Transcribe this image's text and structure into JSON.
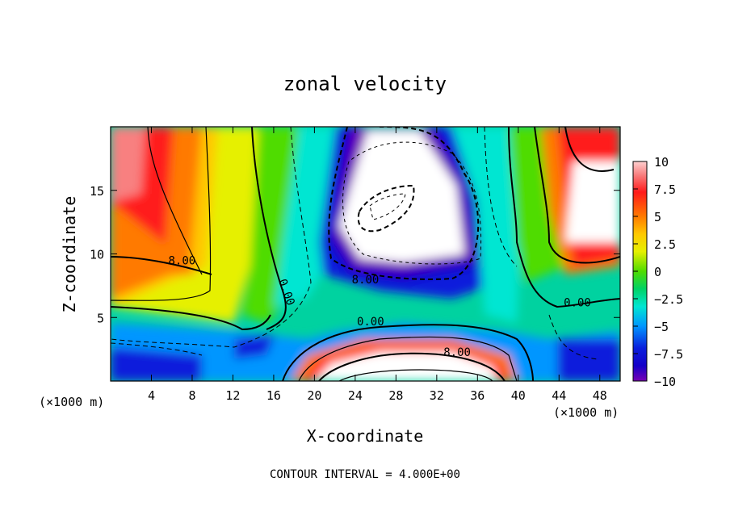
{
  "chart_data": {
    "type": "heatmap",
    "title": "zonal velocity",
    "xlabel": "X-coordinate",
    "ylabel": "Z-coordinate",
    "x_unit": "(×1000 m)",
    "y_unit": "(×1000 m)",
    "xlim": [
      0,
      50
    ],
    "ylim": [
      0,
      20
    ],
    "x_ticks": [
      4,
      8,
      12,
      16,
      20,
      24,
      28,
      32,
      36,
      40,
      44,
      48
    ],
    "y_ticks": [
      5,
      10,
      15
    ],
    "colorbar": {
      "ticks": [
        10,
        7.5,
        5,
        2.5,
        0,
        -2.5,
        -5,
        -7.5,
        -10
      ],
      "tick_labels": [
        "10",
        "7.5",
        "5",
        "2.5",
        "0",
        "−2.5",
        "−5",
        "−7.5",
        "−10"
      ],
      "range": [
        -10,
        10
      ]
    },
    "contour_interval": 4.0,
    "contour_labels": [
      {
        "text": "8.00",
        "x": 7,
        "z": 9.5
      },
      {
        "text": "0.00",
        "x": 17.3,
        "z": 7
      },
      {
        "text": "8.00",
        "x": 25,
        "z": 8
      },
      {
        "text": "0.00",
        "x": 25.5,
        "z": 4.7
      },
      {
        "text": "8.00",
        "x": 34,
        "z": 2.3
      },
      {
        "text": "0.00",
        "x": 45.8,
        "z": 6.2
      }
    ],
    "fields": {
      "interval_note": "CONTOUR INTERVAL = 4.000E+00"
    }
  }
}
